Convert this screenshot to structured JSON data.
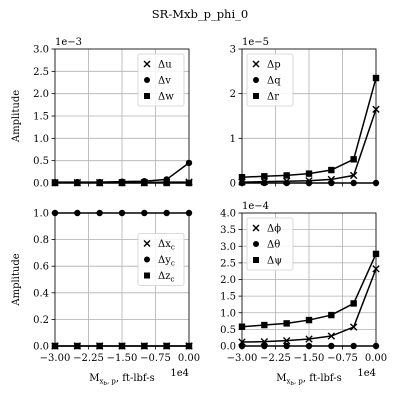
{
  "title": "SR-Mxb_p_phi_0",
  "chart_data": [
    {
      "type": "line",
      "ylabel": "Amplitude",
      "y_offset_text": "1e−3",
      "legend": "upper right",
      "grid": true,
      "x": [
        -30000,
        -25000,
        -20000,
        -15000,
        -10000,
        -5000,
        0
      ],
      "xlim": [
        -30000,
        0
      ],
      "xticks": [
        -30000,
        -22500,
        -15000,
        -7500,
        0
      ],
      "ylim": [
        0,
        0.003
      ],
      "yticks": [
        {
          "value": 0,
          "label": "0.0"
        },
        {
          "value": 0.0005,
          "label": "0.5"
        },
        {
          "value": 0.001,
          "label": "1.0"
        },
        {
          "value": 0.0015,
          "label": "1.5"
        },
        {
          "value": 0.002,
          "label": "2.0"
        },
        {
          "value": 0.0025,
          "label": "2.5"
        },
        {
          "value": 0.003,
          "label": "3.0"
        }
      ],
      "series": [
        {
          "name": "Δu",
          "marker": "x",
          "color": "#000000",
          "values": [
            1e-05,
            1e-05,
            1e-05,
            1e-05,
            1e-05,
            2e-05,
            2e-05
          ]
        },
        {
          "name": "Δv",
          "marker": "o",
          "color": "#000000",
          "values": [
            2e-05,
            2e-05,
            2e-05,
            3e-05,
            4e-05,
            8e-05,
            0.00045
          ]
        },
        {
          "name": "Δw",
          "marker": "s",
          "color": "#000000",
          "values": [
            0,
            0,
            0,
            0,
            0,
            0,
            0
          ]
        }
      ]
    },
    {
      "type": "line",
      "y_offset_text": "1e−5",
      "legend": "upper left",
      "grid": true,
      "x": [
        -30000,
        -25000,
        -20000,
        -15000,
        -10000,
        -5000,
        0
      ],
      "xlim": [
        -30000,
        0
      ],
      "xticks": [
        -30000,
        -22500,
        -15000,
        -7500,
        0
      ],
      "ylim": [
        0,
        3e-05
      ],
      "yticks": [
        {
          "value": 0,
          "label": "0"
        },
        {
          "value": 1e-05,
          "label": "1"
        },
        {
          "value": 2e-05,
          "label": "2"
        },
        {
          "value": 3e-05,
          "label": "3"
        }
      ],
      "series": [
        {
          "name": "Δp",
          "marker": "x",
          "color": "#000000",
          "values": [
            2e-07,
            3e-07,
            4e-07,
            5e-07,
            8e-07,
            1.7e-06,
            1.65e-05
          ]
        },
        {
          "name": "Δq",
          "marker": "o",
          "color": "#000000",
          "values": [
            0,
            0,
            0,
            0,
            0,
            0,
            0
          ]
        },
        {
          "name": "Δr",
          "marker": "s",
          "color": "#000000",
          "values": [
            1.3e-06,
            1.5e-06,
            1.7e-06,
            2.1e-06,
            2.9e-06,
            5.3e-06,
            2.35e-05
          ]
        }
      ]
    },
    {
      "type": "line",
      "ylabel": "Amplitude",
      "legend": "right",
      "grid": true,
      "xlabel": {
        "main": "M",
        "sub": "x",
        "subsub": "b",
        "subrest": ", p",
        "rest": ", ft-lbf-s"
      },
      "x_offset_text": "1e4",
      "x": [
        -30000,
        -25000,
        -20000,
        -15000,
        -10000,
        -5000,
        0
      ],
      "xlim": [
        -30000,
        0
      ],
      "xticks": [
        {
          "value": -30000,
          "label": "−3.00"
        },
        {
          "value": -22500,
          "label": "−2.25"
        },
        {
          "value": -15000,
          "label": "−1.50"
        },
        {
          "value": -7500,
          "label": "−0.75"
        },
        {
          "value": 0,
          "label": "0.00"
        }
      ],
      "ylim": [
        0,
        1
      ],
      "yticks": [
        {
          "value": 0,
          "label": "0.0"
        },
        {
          "value": 0.2,
          "label": "0.2"
        },
        {
          "value": 0.4,
          "label": "0.4"
        },
        {
          "value": 0.6,
          "label": "0.6"
        },
        {
          "value": 0.8,
          "label": "0.8"
        },
        {
          "value": 1,
          "label": "1.0"
        }
      ],
      "series": [
        {
          "name": "Δx",
          "name_sub": "c",
          "marker": "x",
          "color": "#000000",
          "values": [
            0,
            0,
            0,
            0,
            0,
            0,
            0
          ]
        },
        {
          "name": "Δy",
          "name_sub": "c",
          "marker": "o",
          "color": "#000000",
          "values": [
            1,
            1,
            1,
            1,
            1,
            1,
            1
          ]
        },
        {
          "name": "Δz",
          "name_sub": "c",
          "marker": "s",
          "color": "#000000",
          "values": [
            0,
            0,
            0,
            0,
            0,
            0,
            0
          ]
        }
      ]
    },
    {
      "type": "line",
      "y_offset_text": "1e−4",
      "legend": "upper left",
      "grid": true,
      "xlabel": {
        "main": "M",
        "sub": "x",
        "subsub": "b",
        "subrest": ", p",
        "rest": ", ft-lbf-s"
      },
      "x_offset_text": "1e4",
      "x": [
        -30000,
        -25000,
        -20000,
        -15000,
        -10000,
        -5000,
        0
      ],
      "xlim": [
        -30000,
        0
      ],
      "xticks": [
        {
          "value": -30000,
          "label": "−3.00"
        },
        {
          "value": -22500,
          "label": "−2.25"
        },
        {
          "value": -15000,
          "label": "−1.50"
        },
        {
          "value": -7500,
          "label": "−0.75"
        },
        {
          "value": 0,
          "label": "0.00"
        }
      ],
      "ylim": [
        0,
        0.0004
      ],
      "yticks": [
        {
          "value": 0,
          "label": "0.0"
        },
        {
          "value": 5e-05,
          "label": "0.5"
        },
        {
          "value": 0.0001,
          "label": "1.0"
        },
        {
          "value": 0.00015,
          "label": "1.5"
        },
        {
          "value": 0.0002,
          "label": "2.0"
        },
        {
          "value": 0.00025,
          "label": "2.5"
        },
        {
          "value": 0.0003,
          "label": "3.0"
        },
        {
          "value": 0.00035,
          "label": "3.5"
        },
        {
          "value": 0.0004,
          "label": "4.0"
        }
      ],
      "series": [
        {
          "name": "Δϕ",
          "marker": "x",
          "color": "#000000",
          "values": [
            1.2e-05,
            1.3e-05,
            1.6e-05,
            2.1e-05,
            3e-05,
            5.7e-05,
            0.000232
          ]
        },
        {
          "name": "Δθ",
          "marker": "o",
          "color": "#000000",
          "values": [
            0,
            0,
            0,
            0,
            0,
            0,
            0
          ]
        },
        {
          "name": "Δψ",
          "marker": "s",
          "color": "#000000",
          "values": [
            5.8e-05,
            6.3e-05,
            6.8e-05,
            7.8e-05,
            9.3e-05,
            0.000128,
            0.000277
          ]
        }
      ]
    }
  ]
}
